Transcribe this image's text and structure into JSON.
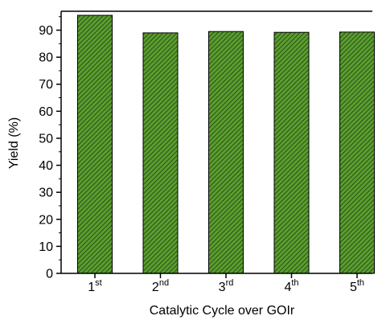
{
  "chart_data": {
    "type": "bar",
    "categories": [
      {
        "base": "1",
        "sup": "st"
      },
      {
        "base": "2",
        "sup": "nd"
      },
      {
        "base": "3",
        "sup": "rd"
      },
      {
        "base": "4",
        "sup": "th"
      },
      {
        "base": "5",
        "sup": "th"
      }
    ],
    "values": [
      95.5,
      89.0,
      89.5,
      89.2,
      89.3
    ],
    "xlabel": "Catalytic Cycle over GOIr",
    "ylabel": "Yield (%)",
    "ylim": [
      0,
      97
    ],
    "yticks": [
      0,
      10,
      20,
      30,
      40,
      50,
      60,
      70,
      80,
      90
    ],
    "grid": false,
    "colors": {
      "bar_fill": "#5a9e2f",
      "bar_hatch": "#1f3a10",
      "bar_edge": "#000000",
      "axis": "#000000"
    }
  }
}
